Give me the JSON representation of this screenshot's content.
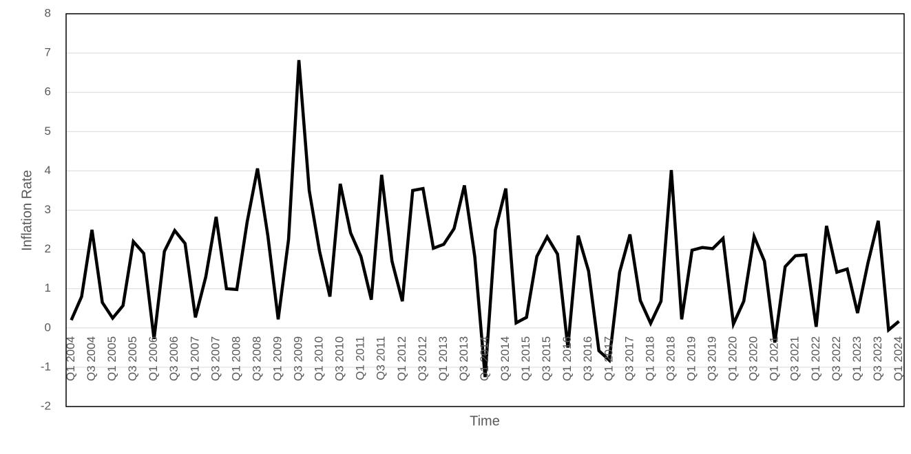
{
  "chart_data": {
    "type": "line",
    "y_label": "Inflation Rate",
    "x_label": "Time",
    "categories": [
      "Q1 2004",
      null,
      "Q3 2004",
      null,
      "Q1 2005",
      null,
      "Q3 2005",
      null,
      "Q1 2006",
      null,
      "Q3 2006",
      null,
      "Q1 2007",
      null,
      "Q3 2007",
      null,
      "Q1 2008",
      null,
      "Q3 2008",
      null,
      "Q1 2009",
      null,
      "Q3 2009",
      null,
      "Q1 2010",
      null,
      "Q3 2010",
      null,
      "Q1 2011",
      null,
      "Q3 2011",
      null,
      "Q1 2012",
      null,
      "Q3 2012",
      null,
      "Q1 2013",
      null,
      "Q3 2013",
      null,
      "Q1 2014",
      null,
      "Q3 2014",
      null,
      "Q1 2015",
      null,
      "Q3 2015",
      null,
      "Q1 2016",
      null,
      "Q3 2016",
      null,
      "Q1 2017",
      null,
      "Q3 2017",
      null,
      "Q1 2018",
      null,
      "Q3 2018",
      null,
      "Q1 2019",
      null,
      "Q3 2019",
      null,
      "Q1 2020",
      null,
      "Q3 2020",
      null,
      "Q1 2021",
      null,
      "Q3 2021",
      null,
      "Q1 2022",
      null,
      "Q3 2022",
      null,
      "Q1 2023",
      null,
      "Q3 2023",
      null,
      "Q1 2024"
    ],
    "values": [
      0.2,
      0.8,
      2.5,
      0.65,
      0.25,
      0.57,
      2.2,
      1.9,
      -0.28,
      1.95,
      2.48,
      2.15,
      0.27,
      1.3,
      2.83,
      1.0,
      0.98,
      2.7,
      4.06,
      2.35,
      0.22,
      2.25,
      6.82,
      3.5,
      1.95,
      0.8,
      3.67,
      2.42,
      1.82,
      0.72,
      3.9,
      1.7,
      0.68,
      3.5,
      3.55,
      2.03,
      2.13,
      2.53,
      3.63,
      1.82,
      -1.25,
      2.5,
      3.55,
      0.13,
      0.27,
      1.82,
      2.32,
      1.88,
      -0.5,
      2.35,
      1.45,
      -0.58,
      -0.82,
      1.42,
      2.38,
      0.7,
      0.12,
      0.68,
      4.02,
      0.22,
      1.98,
      2.05,
      2.02,
      2.28,
      0.1,
      0.68,
      2.33,
      1.7,
      -0.37,
      1.56,
      1.84,
      1.86,
      0.03,
      2.6,
      1.42,
      1.5,
      0.38,
      1.65,
      2.73,
      -0.05,
      0.17
    ],
    "color": "#000000",
    "ylim": [
      -2,
      8
    ],
    "yticks": [
      -2,
      -1,
      0,
      1,
      2,
      3,
      4,
      5,
      6,
      7,
      8
    ],
    "grid": true
  }
}
